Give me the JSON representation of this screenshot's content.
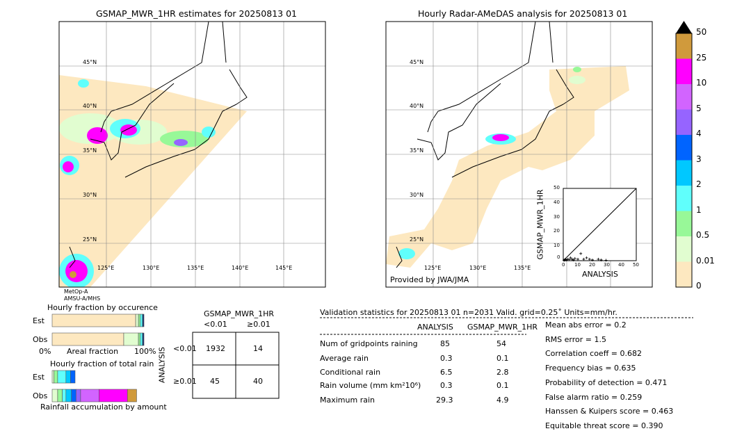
{
  "chart_data": [
    {
      "type": "map",
      "title": "GSMAP_MWR_1HR estimates for 20250813 01",
      "lat_labels": [
        "45°N",
        "40°N",
        "35°N",
        "30°N",
        "25°N"
      ],
      "lon_labels": [
        "125°E",
        "130°E",
        "135°E",
        "140°E",
        "145°E"
      ],
      "satellite": [
        "MetOp-A",
        "AMSU-A/MHS"
      ]
    },
    {
      "type": "map",
      "title": "Hourly Radar-AMeDAS analysis for 20250813 01",
      "lat_labels": [
        "45°N",
        "40°N",
        "35°N",
        "30°N",
        "25°N"
      ],
      "lon_labels": [
        "125°E",
        "130°E",
        "135°E"
      ],
      "credit": "Provided by JWA/JMA"
    },
    {
      "type": "scatter",
      "xlabel": "ANALYSIS",
      "ylabel": "GSMAP_MWR_1HR",
      "xlim": [
        0,
        50
      ],
      "ylim": [
        0,
        50
      ],
      "ticks": [
        "0",
        "10",
        "20",
        "30",
        "40",
        "50"
      ],
      "points": [
        [
          0.5,
          0.3
        ],
        [
          1,
          0.5
        ],
        [
          1.5,
          1
        ],
        [
          2,
          0.5
        ],
        [
          3,
          1
        ],
        [
          4,
          0.8
        ],
        [
          5,
          2
        ],
        [
          6,
          1
        ],
        [
          7,
          0.5
        ],
        [
          8,
          1.5
        ],
        [
          10,
          1
        ],
        [
          12,
          4.9
        ],
        [
          14,
          1
        ],
        [
          16,
          2
        ],
        [
          18,
          1
        ],
        [
          20,
          0.5
        ],
        [
          24,
          1
        ],
        [
          26,
          0.5
        ],
        [
          29.3,
          0.3
        ]
      ]
    },
    {
      "type": "colorbar",
      "levels": [
        "0",
        "0.01",
        "0.5",
        "1",
        "2",
        "3",
        "4",
        "5",
        "10",
        "25",
        "50"
      ],
      "colors": [
        "#fde8c0",
        "#e1fdd0",
        "#98f898",
        "#60fffc",
        "#00c8ff",
        "#0064ff",
        "#9664ff",
        "#d264ff",
        "#ff00ff",
        "#d09a3c"
      ]
    },
    {
      "type": "bar",
      "title": "Hourly fraction by occurence",
      "xlabel": "Areal fraction",
      "xticks": [
        "0%",
        "100%"
      ],
      "categories": [
        "Est",
        "Obs"
      ],
      "series": [
        {
          "category": "Est",
          "fractions": [
            0.91,
            0.03,
            0.02,
            0.02,
            0.01,
            0.01
          ]
        },
        {
          "category": "Obs",
          "fractions": [
            0.78,
            0.16,
            0.02,
            0.02,
            0.01,
            0.01
          ]
        }
      ]
    },
    {
      "type": "bar",
      "title": "Hourly fraction of total rain",
      "xlabel": "Rainfall accumulation by amount",
      "categories": [
        "Est",
        "Obs"
      ],
      "series": [
        {
          "category": "Est",
          "fractions": [
            0.02,
            0.04,
            0.09,
            0.05,
            0.05
          ]
        },
        {
          "category": "Obs",
          "fractions": [
            0.06,
            0.05,
            0.04,
            0.06,
            0.05,
            0.05,
            0.2,
            0.31,
            0.1
          ]
        }
      ]
    },
    {
      "type": "table",
      "title": "GSMAP_MWR_1HR",
      "col_labels": [
        "<0.01",
        "≥0.01"
      ],
      "row_title": "ANALYSIS",
      "row_labels": [
        "<0.01",
        "≥0.01"
      ],
      "cells": [
        [
          "1932",
          "14"
        ],
        [
          "45",
          "40"
        ]
      ]
    }
  ],
  "stats": {
    "header": "Validation statistics for 20250813 01  n=2031 Valid. grid=0.25˚ Units=mm/hr.",
    "col_analysis": "ANALYSIS",
    "col_gsmap": "GSMAP_MWR_1HR",
    "rows": [
      {
        "label": "Num of gridpoints raining",
        "a": "85",
        "g": "54"
      },
      {
        "label": "Average rain",
        "a": "0.3",
        "g": "0.1"
      },
      {
        "label": "Conditional rain",
        "a": "6.5",
        "g": "2.8"
      },
      {
        "label": "Rain volume (mm km²10⁶)",
        "a": "0.3",
        "g": "0.1"
      },
      {
        "label": "Maximum rain",
        "a": "29.3",
        "g": "4.9"
      }
    ],
    "scores": [
      "Mean abs error =    0.2",
      "RMS error =    1.5",
      "Correlation coeff =  0.682",
      "Frequency bias =  0.635",
      "Probability of detection =  0.471",
      "False alarm ratio =  0.259",
      "Hanssen & Kuipers score =  0.463",
      "Equitable threat score =  0.390"
    ]
  }
}
